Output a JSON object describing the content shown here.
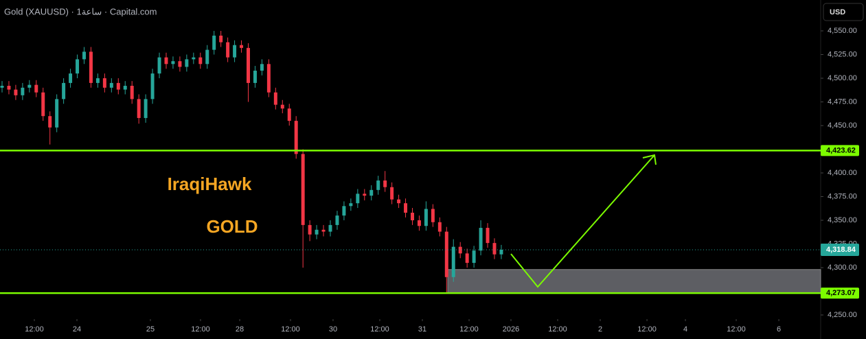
{
  "chart_data": {
    "type": "candlestick",
    "title": "Gold (XAUUSD) · 1ساعة · Capital.com",
    "currency": "USD",
    "annotations": [
      "IraqiHawk",
      "GOLD"
    ],
    "up_color": "#26a69a",
    "down_color": "#f23645",
    "level_color": "#7cfc00",
    "open": [
      4490,
      4492,
      4488,
      4482,
      4490,
      4493,
      4485,
      4460,
      4448,
      4478,
      4495,
      4505,
      4520,
      4528,
      4495,
      4500,
      4490,
      4495,
      4488,
      4492,
      4478,
      4458,
      4478,
      4505,
      4522,
      4515,
      4518,
      4512,
      4520,
      4522,
      4515,
      4530,
      4545,
      4538,
      4522,
      4535,
      4532,
      4495,
      4508,
      4515,
      4485,
      4472,
      4468,
      4455,
      4420,
      4345,
      4335,
      4340,
      4338,
      4345,
      4355,
      4365,
      4368,
      4378,
      4376,
      4382,
      4392,
      4385,
      4372,
      4368,
      4358,
      4350,
      4344,
      4362,
      4348,
      4338,
      4290,
      4322,
      4315,
      4305,
      4318,
      4342,
      4326,
      4314
    ],
    "high": [
      4497,
      4497,
      4493,
      4495,
      4498,
      4498,
      4490,
      4465,
      4483,
      4500,
      4510,
      4525,
      4533,
      4533,
      4505,
      4505,
      4500,
      4500,
      4497,
      4497,
      4483,
      4483,
      4510,
      4527,
      4527,
      4523,
      4523,
      4525,
      4527,
      4527,
      4535,
      4550,
      4550,
      4543,
      4540,
      4540,
      4537,
      4513,
      4520,
      4520,
      4490,
      4477,
      4473,
      4460,
      4425,
      4350,
      4345,
      4345,
      4350,
      4360,
      4370,
      4373,
      4383,
      4383,
      4387,
      4397,
      4402,
      4390,
      4377,
      4373,
      4363,
      4355,
      4370,
      4367,
      4353,
      4343,
      4330,
      4327,
      4320,
      4323,
      4350,
      4347,
      4331,
      4324
    ],
    "low": [
      4485,
      4483,
      4477,
      4477,
      4485,
      4480,
      4455,
      4430,
      4443,
      4473,
      4490,
      4500,
      4515,
      4490,
      4490,
      4485,
      4485,
      4483,
      4483,
      4473,
      4452,
      4453,
      4473,
      4500,
      4510,
      4510,
      4507,
      4507,
      4515,
      4510,
      4510,
      4525,
      4533,
      4517,
      4517,
      4527,
      4475,
      4490,
      4503,
      4480,
      4467,
      4463,
      4450,
      4415,
      4300,
      4328,
      4330,
      4333,
      4333,
      4340,
      4350,
      4360,
      4363,
      4371,
      4371,
      4377,
      4380,
      4367,
      4363,
      4353,
      4345,
      4339,
      4339,
      4343,
      4333,
      4273,
      4285,
      4310,
      4300,
      4300,
      4313,
      4321,
      4309,
      4309
    ],
    "close": [
      4492,
      4488,
      4482,
      4490,
      4493,
      4485,
      4460,
      4448,
      4478,
      4495,
      4505,
      4520,
      4528,
      4495,
      4500,
      4490,
      4495,
      4488,
      4492,
      4478,
      4458,
      4478,
      4505,
      4522,
      4515,
      4518,
      4512,
      4520,
      4522,
      4515,
      4530,
      4545,
      4538,
      4522,
      4535,
      4532,
      4495,
      4508,
      4515,
      4485,
      4472,
      4468,
      4455,
      4420,
      4345,
      4335,
      4340,
      4338,
      4345,
      4355,
      4365,
      4368,
      4378,
      4376,
      4382,
      4392,
      4385,
      4372,
      4368,
      4358,
      4350,
      4344,
      4362,
      4348,
      4338,
      4290,
      4322,
      4315,
      4305,
      4318,
      4342,
      4326,
      4314,
      4318.84
    ],
    "levels": [
      {
        "value": 4423.62,
        "label": "4,423.62"
      },
      {
        "value": 4273.07,
        "label": "4,273.07"
      }
    ],
    "last_price": {
      "value": 4318.84,
      "label": "4,318.84"
    },
    "zone": [
      4298,
      4273
    ],
    "ylim": [
      4245.65,
      4582.61
    ],
    "yticks": [
      {
        "value": 4250,
        "label": "4,250.00"
      },
      {
        "value": 4275,
        "label": "4,275.00"
      },
      {
        "value": 4300,
        "label": "4,300.00"
      },
      {
        "value": 4325,
        "label": "4,325.00"
      },
      {
        "value": 4350,
        "label": "4,350.00"
      },
      {
        "value": 4375,
        "label": "4,375.00"
      },
      {
        "value": 4400,
        "label": "4,400.00"
      },
      {
        "value": 4425,
        "label": "4,425.00"
      },
      {
        "value": 4450,
        "label": "4,450.00"
      },
      {
        "value": 4475,
        "label": "4,475.00"
      },
      {
        "value": 4500,
        "label": "4,500.00"
      },
      {
        "value": 4525,
        "label": "4,525.00"
      },
      {
        "value": 4550,
        "label": "4,550.00"
      }
    ],
    "xlim": [
      0,
      120
    ],
    "xticks": [
      {
        "value": 5.02,
        "label": "12:00"
      },
      {
        "value": 11.25,
        "label": "24"
      },
      {
        "value": 21.99,
        "label": "25"
      },
      {
        "value": 29.32,
        "label": "12:00"
      },
      {
        "value": 35.05,
        "label": "28"
      },
      {
        "value": 42.48,
        "label": "12:00"
      },
      {
        "value": 48.7,
        "label": "30"
      },
      {
        "value": 55.53,
        "label": "12:00"
      },
      {
        "value": 61.76,
        "label": "31"
      },
      {
        "value": 68.59,
        "label": "12:00"
      },
      {
        "value": 74.71,
        "label": "2026"
      },
      {
        "value": 81.54,
        "label": "12:00"
      },
      {
        "value": 87.77,
        "label": "2"
      },
      {
        "value": 94.6,
        "label": "12:00"
      },
      {
        "value": 100.22,
        "label": "4"
      },
      {
        "value": 107.65,
        "label": "12:00"
      },
      {
        "value": 113.88,
        "label": "6"
      }
    ]
  }
}
